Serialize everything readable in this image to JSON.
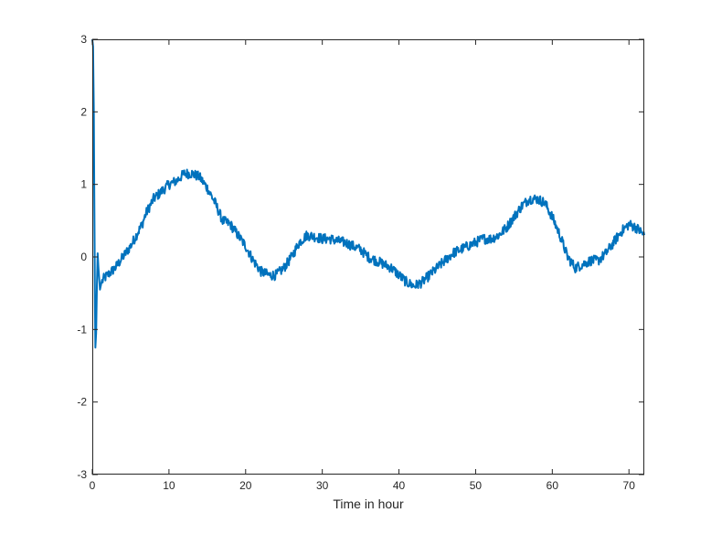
{
  "chart_data": {
    "type": "line",
    "title": "",
    "xlabel": "Time in hour",
    "ylabel": "",
    "xlim": [
      0,
      72
    ],
    "ylim": [
      -3,
      3
    ],
    "x_ticks": [
      0,
      10,
      20,
      30,
      40,
      50,
      60,
      70
    ],
    "y_ticks": [
      3,
      2,
      1,
      0,
      -1,
      -2,
      -3
    ],
    "y_tick_labels": [
      "3",
      "2",
      "1",
      "0",
      "-1",
      "-2",
      "-3"
    ],
    "grid": false,
    "line_color": "#0072BD",
    "series": [
      {
        "x": [
          0,
          0.1,
          0.2,
          0.25,
          0.3,
          0.35,
          0.4,
          0.5,
          0.6,
          0.7,
          0.8,
          1.0,
          1.2,
          1.5,
          2,
          3,
          4,
          5,
          6,
          6.5,
          7,
          8,
          9,
          10,
          11,
          12,
          13,
          14,
          15,
          16,
          17,
          18,
          19,
          20,
          21,
          22,
          23,
          24,
          25,
          26,
          27,
          28,
          29,
          30,
          31,
          32,
          33,
          34,
          35,
          36,
          37,
          38,
          39,
          40,
          41,
          42,
          43,
          44,
          45,
          46,
          47,
          48,
          49,
          50,
          51,
          52,
          53,
          54,
          55,
          56,
          57,
          58,
          59,
          60,
          61,
          62,
          63,
          64,
          65,
          66,
          67,
          68,
          69,
          70,
          71,
          72
        ],
        "y": [
          3.0,
          2.9,
          2.0,
          1.0,
          0.2,
          -0.7,
          -1.25,
          -1.05,
          -0.4,
          0.05,
          -0.15,
          -0.45,
          -0.35,
          -0.3,
          -0.25,
          -0.15,
          0.0,
          0.15,
          0.35,
          0.45,
          0.6,
          0.8,
          0.9,
          1.0,
          1.05,
          1.15,
          1.15,
          1.1,
          0.95,
          0.75,
          0.5,
          0.45,
          0.3,
          0.15,
          -0.05,
          -0.2,
          -0.25,
          -0.25,
          -0.15,
          0.0,
          0.2,
          0.3,
          0.28,
          0.25,
          0.25,
          0.22,
          0.2,
          0.15,
          0.1,
          0.0,
          -0.05,
          -0.1,
          -0.15,
          -0.25,
          -0.35,
          -0.4,
          -0.35,
          -0.25,
          -0.15,
          -0.05,
          0.05,
          0.1,
          0.15,
          0.2,
          0.25,
          0.25,
          0.3,
          0.4,
          0.55,
          0.7,
          0.8,
          0.8,
          0.75,
          0.55,
          0.3,
          0.0,
          -0.15,
          -0.1,
          -0.05,
          -0.05,
          0.05,
          0.2,
          0.35,
          0.45,
          0.4,
          0.3
        ]
      }
    ]
  }
}
